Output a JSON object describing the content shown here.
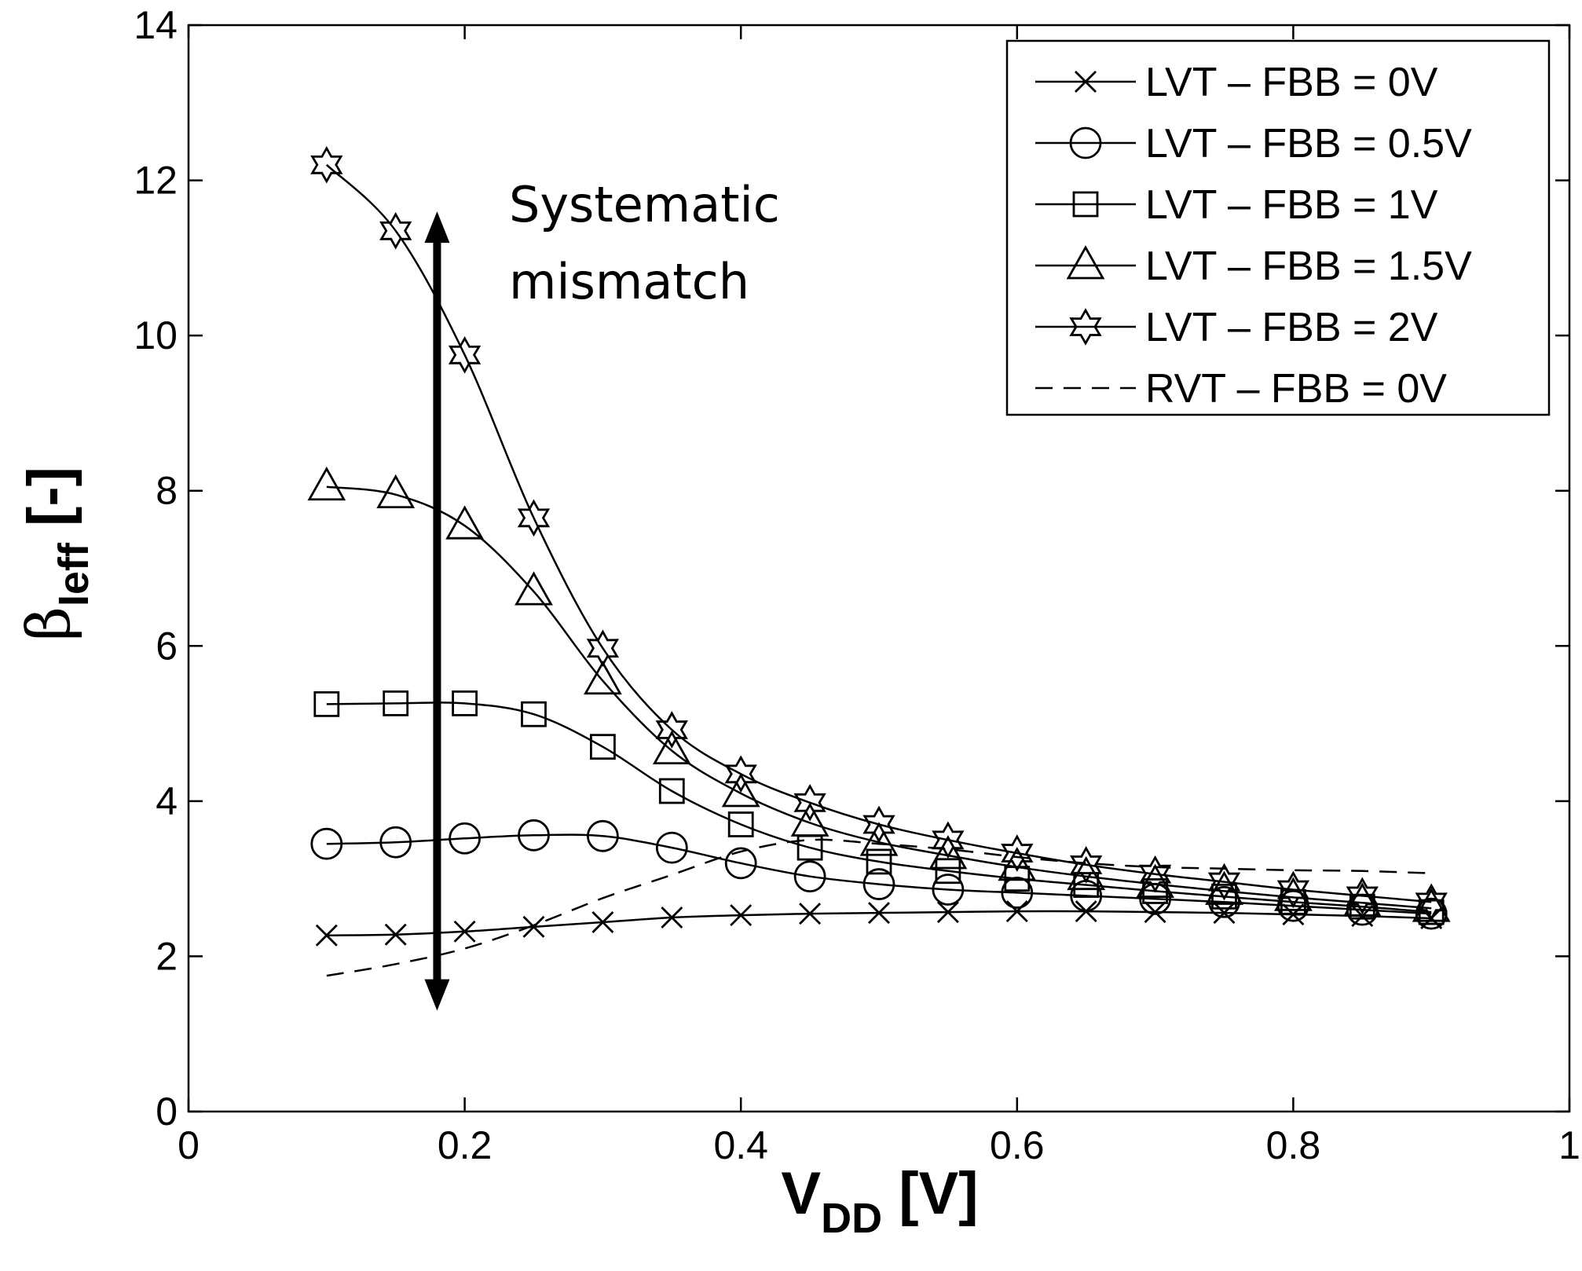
{
  "chart_data": {
    "type": "line",
    "xlabel": "V",
    "xlabel_sub": "DD",
    "xlabel_unit": " [V]",
    "ylabel": "β",
    "ylabel_sub": "Ieff",
    "ylabel_unit": " [-]",
    "xlim": [
      0,
      1
    ],
    "ylim": [
      0,
      14
    ],
    "xticks": [
      0,
      0.2,
      0.4,
      0.6,
      0.8,
      1
    ],
    "xtick_labels": [
      "0",
      "0.2",
      "0.4",
      "0.6",
      "0.8",
      "1"
    ],
    "yticks": [
      0,
      2,
      4,
      6,
      8,
      10,
      12,
      14
    ],
    "ytick_labels": [
      "0",
      "2",
      "4",
      "6",
      "8",
      "10",
      "12",
      "14"
    ],
    "grid": false,
    "legend_position": "top-right",
    "x": [
      0.1,
      0.15,
      0.2,
      0.25,
      0.3,
      0.35,
      0.4,
      0.45,
      0.5,
      0.55,
      0.6,
      0.65,
      0.7,
      0.75,
      0.8,
      0.85,
      0.9
    ],
    "series": [
      {
        "name": "LVT – FBB = 0V",
        "marker": "x",
        "dashed": false,
        "values": [
          2.27,
          2.28,
          2.32,
          2.38,
          2.44,
          2.5,
          2.53,
          2.55,
          2.56,
          2.57,
          2.58,
          2.58,
          2.57,
          2.56,
          2.54,
          2.52,
          2.49
        ]
      },
      {
        "name": "LVT – FBB = 0.5V",
        "marker": "circle",
        "dashed": false,
        "values": [
          3.45,
          3.47,
          3.52,
          3.56,
          3.55,
          3.4,
          3.2,
          3.03,
          2.93,
          2.86,
          2.82,
          2.78,
          2.74,
          2.7,
          2.65,
          2.6,
          2.55
        ]
      },
      {
        "name": "LVT – FBB = 1V",
        "marker": "square",
        "dashed": false,
        "values": [
          5.25,
          5.26,
          5.26,
          5.12,
          4.7,
          4.13,
          3.7,
          3.4,
          3.22,
          3.1,
          3.0,
          2.92,
          2.84,
          2.77,
          2.7,
          2.64,
          2.57
        ]
      },
      {
        "name": "LVT – FBB = 1.5V",
        "marker": "triangle",
        "dashed": false,
        "values": [
          8.05,
          7.95,
          7.55,
          6.7,
          5.55,
          4.65,
          4.1,
          3.72,
          3.47,
          3.3,
          3.15,
          3.03,
          2.93,
          2.84,
          2.76,
          2.69,
          2.62
        ]
      },
      {
        "name": "LVT – FBB = 2V",
        "marker": "star",
        "dashed": false,
        "values": [
          12.2,
          11.35,
          9.75,
          7.65,
          5.97,
          4.92,
          4.35,
          3.98,
          3.7,
          3.5,
          3.33,
          3.18,
          3.06,
          2.96,
          2.86,
          2.78,
          2.7
        ]
      },
      {
        "name": "RVT – FBB = 0V",
        "marker": "none",
        "dashed": true,
        "values": [
          1.75,
          1.9,
          2.1,
          2.4,
          2.75,
          3.05,
          3.35,
          3.5,
          3.45,
          3.38,
          3.28,
          3.2,
          3.15,
          3.13,
          3.11,
          3.1,
          3.07
        ]
      }
    ],
    "annotation": {
      "text_lines": [
        "Systematic",
        "mismatch"
      ],
      "arrow_x": 0.18,
      "arrow_y_top": 11.6,
      "arrow_y_bottom": 1.3
    }
  }
}
